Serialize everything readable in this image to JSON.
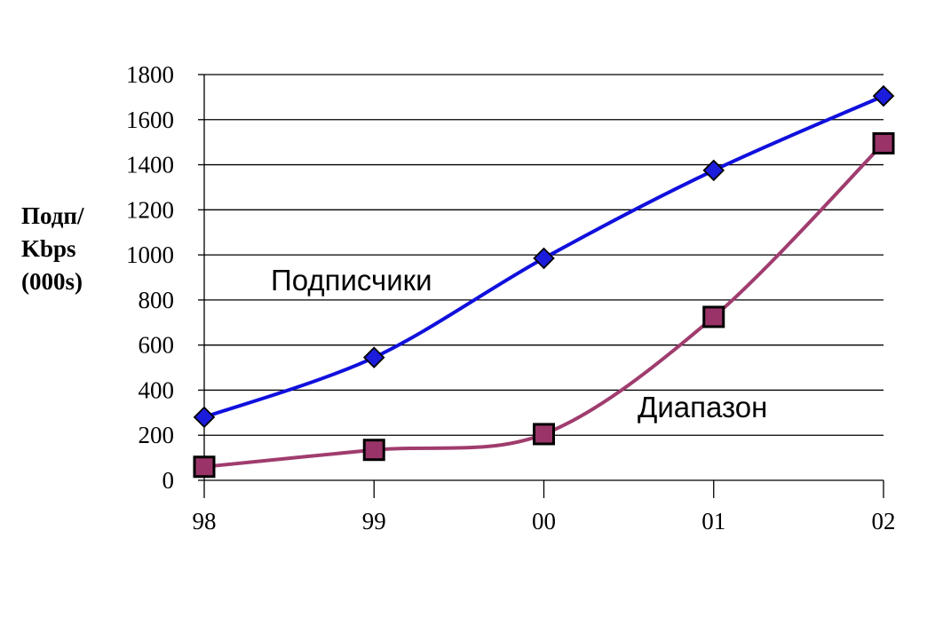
{
  "chart_data": {
    "type": "line",
    "x": [
      "98",
      "99",
      "00",
      "01",
      "02"
    ],
    "ylabel_lines": [
      "Подп/",
      "Kbps",
      "(000s)"
    ],
    "ylim": [
      0,
      1800
    ],
    "yticks": [
      0,
      200,
      400,
      600,
      800,
      1000,
      1200,
      1400,
      1600,
      1800
    ],
    "grid": true,
    "series": [
      {
        "name": "Подписчики",
        "values": [
          280,
          545,
          985,
          1375,
          1705
        ],
        "color": "#1010dd",
        "marker": "diamond",
        "marker_color": "#1c1cdc"
      },
      {
        "name": "Диапазон",
        "values": [
          60,
          135,
          205,
          725,
          1495
        ],
        "color": "#a03c6e",
        "marker": "square",
        "marker_color": "#9a3468"
      }
    ]
  }
}
